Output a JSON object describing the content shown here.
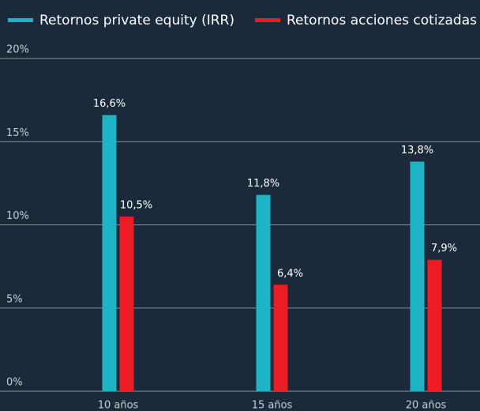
{
  "chart_data": {
    "type": "bar",
    "categories": [
      "10 años",
      "15 años",
      "20 años"
    ],
    "series": [
      {
        "name": "Retornos private equity (IRR)",
        "color": "#1fb3c6",
        "values": [
          16.6,
          11.8,
          13.8
        ],
        "value_labels": [
          "16,6%",
          "11,8%",
          "13,8%"
        ]
      },
      {
        "name": "Retornos acciones cotizadas",
        "color": "#ec1c24",
        "values": [
          10.5,
          6.4,
          7.9
        ],
        "value_labels": [
          "10,5%",
          "6,4%",
          "7,9%"
        ]
      }
    ],
    "ylim": [
      0,
      20
    ],
    "yticks": [
      {
        "value": 0,
        "label": "0%"
      },
      {
        "value": 5,
        "label": "5%"
      },
      {
        "value": 10,
        "label": "10%"
      },
      {
        "value": 15,
        "label": "15%"
      },
      {
        "value": 20,
        "label": "20%"
      }
    ],
    "grid": true,
    "legend": "top"
  }
}
